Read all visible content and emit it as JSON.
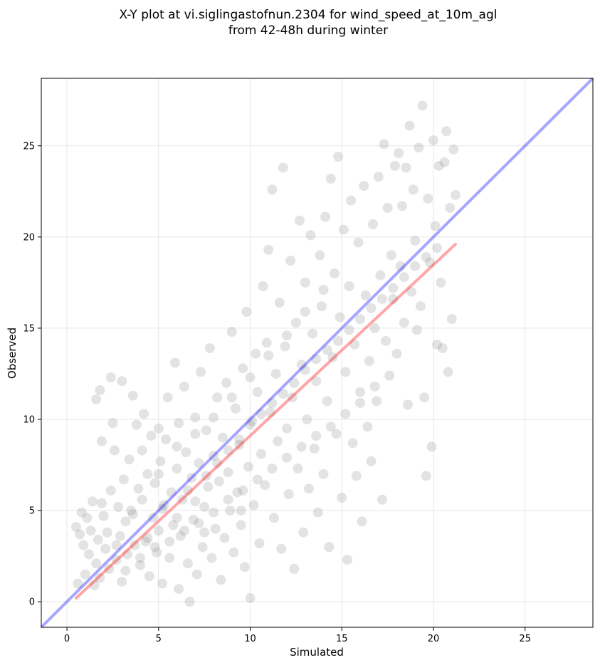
{
  "chart_data": {
    "type": "scatter",
    "title": "X-Y plot at vi.siglingastofnun.2304 for wind_speed_at_10m_agl",
    "subtitle": "from 42-48h during winter",
    "xlabel": "Simulated",
    "ylabel": "Observed",
    "xlim": [
      -1.4,
      28.7
    ],
    "ylim": [
      -1.4,
      28.7
    ],
    "xticks": [
      0,
      5,
      10,
      15,
      20,
      25
    ],
    "yticks": [
      0,
      5,
      10,
      15,
      20,
      25
    ],
    "grid": true,
    "points_color": "#808080",
    "reference_line": {
      "x": [
        -1.4,
        28.7
      ],
      "y": [
        -1.4,
        28.7
      ],
      "color": "#0000ff"
    },
    "fit_line": {
      "x": [
        0.5,
        21.2
      ],
      "y": [
        0.2,
        19.6
      ],
      "color": "#ff0000"
    },
    "points": [
      [
        0.5,
        4.1
      ],
      [
        0.6,
        1.0
      ],
      [
        0.7,
        3.7
      ],
      [
        0.8,
        4.9
      ],
      [
        0.9,
        3.1
      ],
      [
        1.0,
        1.5
      ],
      [
        1.1,
        4.6
      ],
      [
        1.2,
        2.6
      ],
      [
        1.3,
        3.9
      ],
      [
        1.4,
        5.5
      ],
      [
        1.5,
        0.9
      ],
      [
        1.6,
        2.1
      ],
      [
        1.6,
        11.1
      ],
      [
        1.7,
        3.4
      ],
      [
        1.8,
        11.6
      ],
      [
        1.8,
        1.3
      ],
      [
        1.9,
        8.8
      ],
      [
        2.0,
        4.7
      ],
      [
        2.1,
        2.9
      ],
      [
        2.2,
        3.8
      ],
      [
        2.3,
        1.8
      ],
      [
        2.4,
        12.3
      ],
      [
        2.4,
        6.1
      ],
      [
        2.5,
        9.8
      ],
      [
        2.6,
        8.3
      ],
      [
        2.7,
        2.3
      ],
      [
        2.8,
        5.2
      ],
      [
        2.9,
        3.6
      ],
      [
        3.0,
        12.1
      ],
      [
        3.0,
        1.1
      ],
      [
        3.1,
        6.7
      ],
      [
        3.2,
        4.4
      ],
      [
        3.3,
        2.6
      ],
      [
        3.4,
        7.8
      ],
      [
        3.5,
        5.0
      ],
      [
        3.6,
        11.3
      ],
      [
        3.7,
        3.1
      ],
      [
        3.8,
        9.7
      ],
      [
        3.9,
        6.2
      ],
      [
        4.0,
        2.0
      ],
      [
        4.1,
        8.3
      ],
      [
        4.1,
        5.6
      ],
      [
        4.2,
        10.3
      ],
      [
        4.3,
        3.3
      ],
      [
        4.4,
        7.0
      ],
      [
        4.5,
        1.4
      ],
      [
        4.6,
        9.1
      ],
      [
        4.7,
        4.6
      ],
      [
        4.8,
        6.5
      ],
      [
        4.9,
        2.7
      ],
      [
        5.0,
        9.5
      ],
      [
        5.0,
        3.9
      ],
      [
        5.1,
        7.7
      ],
      [
        5.2,
        1.0
      ],
      [
        5.3,
        5.3
      ],
      [
        5.4,
        8.9
      ],
      [
        5.5,
        11.2
      ],
      [
        5.6,
        2.4
      ],
      [
        5.7,
        6.0
      ],
      [
        5.8,
        4.2
      ],
      [
        5.9,
        13.1
      ],
      [
        6.0,
        7.3
      ],
      [
        6.1,
        0.7
      ],
      [
        6.1,
        9.8
      ],
      [
        6.2,
        3.6
      ],
      [
        6.3,
        5.6
      ],
      [
        6.4,
        11.8
      ],
      [
        6.5,
        8.2
      ],
      [
        6.6,
        2.1
      ],
      [
        6.7,
        0.0
      ],
      [
        6.8,
        6.8
      ],
      [
        6.9,
        4.5
      ],
      [
        7.0,
        10.1
      ],
      [
        7.1,
        1.5
      ],
      [
        7.2,
        7.6
      ],
      [
        7.3,
        12.6
      ],
      [
        7.4,
        3.0
      ],
      [
        7.5,
        5.2
      ],
      [
        7.6,
        9.4
      ],
      [
        7.7,
        6.3
      ],
      [
        7.8,
        13.9
      ],
      [
        7.9,
        2.4
      ],
      [
        8.0,
        8.0
      ],
      [
        8.1,
        4.0
      ],
      [
        8.2,
        11.2
      ],
      [
        8.3,
        6.6
      ],
      [
        8.4,
        1.2
      ],
      [
        8.5,
        9.0
      ],
      [
        8.6,
        3.5
      ],
      [
        8.7,
        12.0
      ],
      [
        8.8,
        7.1
      ],
      [
        8.9,
        5.0
      ],
      [
        9.0,
        14.8
      ],
      [
        9.1,
        2.7
      ],
      [
        9.2,
        10.6
      ],
      [
        9.3,
        6.0
      ],
      [
        9.4,
        8.6
      ],
      [
        9.5,
        4.2
      ],
      [
        9.6,
        12.8
      ],
      [
        9.7,
        1.9
      ],
      [
        9.8,
        15.9
      ],
      [
        9.9,
        7.4
      ],
      [
        10.0,
        0.2
      ],
      [
        10.1,
        9.9
      ],
      [
        10.2,
        5.3
      ],
      [
        10.3,
        13.6
      ],
      [
        10.4,
        11.5
      ],
      [
        10.5,
        3.2
      ],
      [
        10.6,
        8.1
      ],
      [
        10.7,
        17.3
      ],
      [
        10.8,
        6.4
      ],
      [
        10.9,
        14.2
      ],
      [
        11.0,
        19.3
      ],
      [
        11.1,
        10.4
      ],
      [
        11.2,
        22.6
      ],
      [
        11.3,
        4.6
      ],
      [
        11.4,
        12.5
      ],
      [
        11.5,
        8.8
      ],
      [
        11.6,
        16.4
      ],
      [
        11.7,
        2.9
      ],
      [
        11.8,
        23.8
      ],
      [
        11.9,
        14.0
      ],
      [
        12.0,
        9.5
      ],
      [
        12.1,
        5.9
      ],
      [
        12.2,
        18.7
      ],
      [
        12.3,
        11.2
      ],
      [
        12.4,
        1.8
      ],
      [
        12.5,
        15.3
      ],
      [
        12.6,
        7.3
      ],
      [
        12.7,
        20.9
      ],
      [
        12.8,
        13.0
      ],
      [
        12.9,
        3.8
      ],
      [
        13.0,
        17.5
      ],
      [
        13.1,
        10.0
      ],
      [
        13.2,
        6.2
      ],
      [
        13.3,
        20.1
      ],
      [
        13.4,
        14.7
      ],
      [
        13.5,
        8.4
      ],
      [
        13.6,
        12.1
      ],
      [
        13.7,
        4.9
      ],
      [
        13.8,
        19.0
      ],
      [
        13.9,
        16.2
      ],
      [
        14.0,
        7.0
      ],
      [
        14.1,
        21.1
      ],
      [
        14.2,
        11.0
      ],
      [
        14.3,
        3.0
      ],
      [
        14.4,
        23.2
      ],
      [
        14.5,
        13.4
      ],
      [
        14.6,
        18.0
      ],
      [
        14.7,
        9.2
      ],
      [
        14.8,
        24.4
      ],
      [
        14.9,
        15.6
      ],
      [
        15.0,
        5.7
      ],
      [
        15.1,
        20.4
      ],
      [
        15.2,
        12.6
      ],
      [
        15.3,
        2.3
      ],
      [
        15.4,
        17.3
      ],
      [
        15.5,
        22.0
      ],
      [
        15.6,
        8.7
      ],
      [
        15.7,
        14.1
      ],
      [
        15.8,
        6.9
      ],
      [
        15.9,
        19.7
      ],
      [
        16.0,
        11.5
      ],
      [
        16.1,
        4.4
      ],
      [
        16.2,
        22.8
      ],
      [
        16.3,
        16.8
      ],
      [
        16.4,
        9.6
      ],
      [
        16.5,
        13.2
      ],
      [
        16.6,
        7.7
      ],
      [
        16.7,
        20.7
      ],
      [
        16.8,
        15.0
      ],
      [
        16.9,
        11.0
      ],
      [
        17.0,
        23.3
      ],
      [
        17.1,
        17.9
      ],
      [
        17.2,
        5.6
      ],
      [
        17.3,
        25.1
      ],
      [
        17.4,
        14.3
      ],
      [
        17.5,
        21.6
      ],
      [
        17.6,
        12.4
      ],
      [
        17.7,
        19.0
      ],
      [
        17.8,
        16.6
      ],
      [
        17.9,
        23.9
      ],
      [
        18.0,
        13.6
      ],
      [
        18.1,
        24.6
      ],
      [
        18.2,
        18.4
      ],
      [
        18.3,
        21.7
      ],
      [
        18.4,
        15.3
      ],
      [
        18.5,
        23.8
      ],
      [
        18.6,
        10.8
      ],
      [
        18.7,
        26.1
      ],
      [
        18.8,
        17.0
      ],
      [
        18.9,
        22.6
      ],
      [
        19.0,
        19.8
      ],
      [
        19.1,
        14.9
      ],
      [
        19.2,
        24.9
      ],
      [
        19.3,
        16.2
      ],
      [
        19.4,
        27.2
      ],
      [
        19.5,
        11.2
      ],
      [
        19.6,
        6.9
      ],
      [
        19.7,
        22.1
      ],
      [
        19.8,
        18.6
      ],
      [
        19.9,
        8.5
      ],
      [
        20.0,
        25.3
      ],
      [
        20.1,
        20.6
      ],
      [
        20.2,
        14.1
      ],
      [
        20.3,
        23.9
      ],
      [
        20.4,
        17.5
      ],
      [
        20.5,
        13.9
      ],
      [
        20.6,
        24.1
      ],
      [
        20.7,
        25.8
      ],
      [
        20.8,
        12.6
      ],
      [
        20.9,
        21.6
      ],
      [
        21.0,
        15.5
      ],
      [
        21.1,
        24.8
      ],
      [
        21.2,
        22.3
      ],
      [
        1.9,
        5.4
      ],
      [
        2.7,
        3.1
      ],
      [
        3.6,
        4.8
      ],
      [
        4.4,
        3.5
      ],
      [
        5.2,
        5.1
      ],
      [
        6.0,
        4.6
      ],
      [
        6.6,
        6.1
      ],
      [
        7.0,
        5.5
      ],
      [
        7.6,
        6.9
      ],
      [
        8.2,
        7.6
      ],
      [
        8.8,
        8.3
      ],
      [
        9.4,
        8.9
      ],
      [
        10.0,
        9.7
      ],
      [
        10.6,
        10.3
      ],
      [
        11.2,
        10.9
      ],
      [
        11.8,
        11.4
      ],
      [
        12.4,
        12.0
      ],
      [
        13.0,
        12.7
      ],
      [
        13.6,
        13.3
      ],
      [
        14.2,
        13.8
      ],
      [
        14.8,
        14.3
      ],
      [
        15.4,
        14.9
      ],
      [
        16.0,
        15.5
      ],
      [
        16.6,
        16.1
      ],
      [
        17.2,
        16.6
      ],
      [
        17.8,
        17.2
      ],
      [
        18.4,
        17.8
      ],
      [
        19.0,
        18.4
      ],
      [
        19.6,
        18.9
      ],
      [
        20.2,
        19.4
      ],
      [
        3.2,
        1.7
      ],
      [
        4.0,
        2.4
      ],
      [
        4.8,
        3.0
      ],
      [
        5.6,
        3.3
      ],
      [
        6.4,
        3.9
      ],
      [
        7.2,
        4.3
      ],
      [
        8.0,
        4.9
      ],
      [
        8.8,
        5.6
      ],
      [
        9.6,
        6.1
      ],
      [
        10.4,
        6.7
      ],
      [
        11.2,
        7.3
      ],
      [
        12.0,
        7.9
      ],
      [
        12.8,
        8.5
      ],
      [
        13.6,
        9.1
      ],
      [
        14.4,
        9.6
      ],
      [
        15.2,
        10.3
      ],
      [
        16.0,
        10.9
      ],
      [
        16.8,
        11.8
      ],
      [
        5.0,
        7.0
      ],
      [
        6.0,
        8.5
      ],
      [
        7.0,
        9.2
      ],
      [
        8.0,
        10.1
      ],
      [
        9.0,
        11.2
      ],
      [
        10.0,
        12.3
      ],
      [
        11.0,
        13.5
      ],
      [
        12.0,
        14.6
      ],
      [
        13.0,
        15.9
      ],
      [
        14.0,
        17.1
      ],
      [
        7.5,
        3.8
      ],
      [
        9.5,
        5.0
      ]
    ]
  }
}
